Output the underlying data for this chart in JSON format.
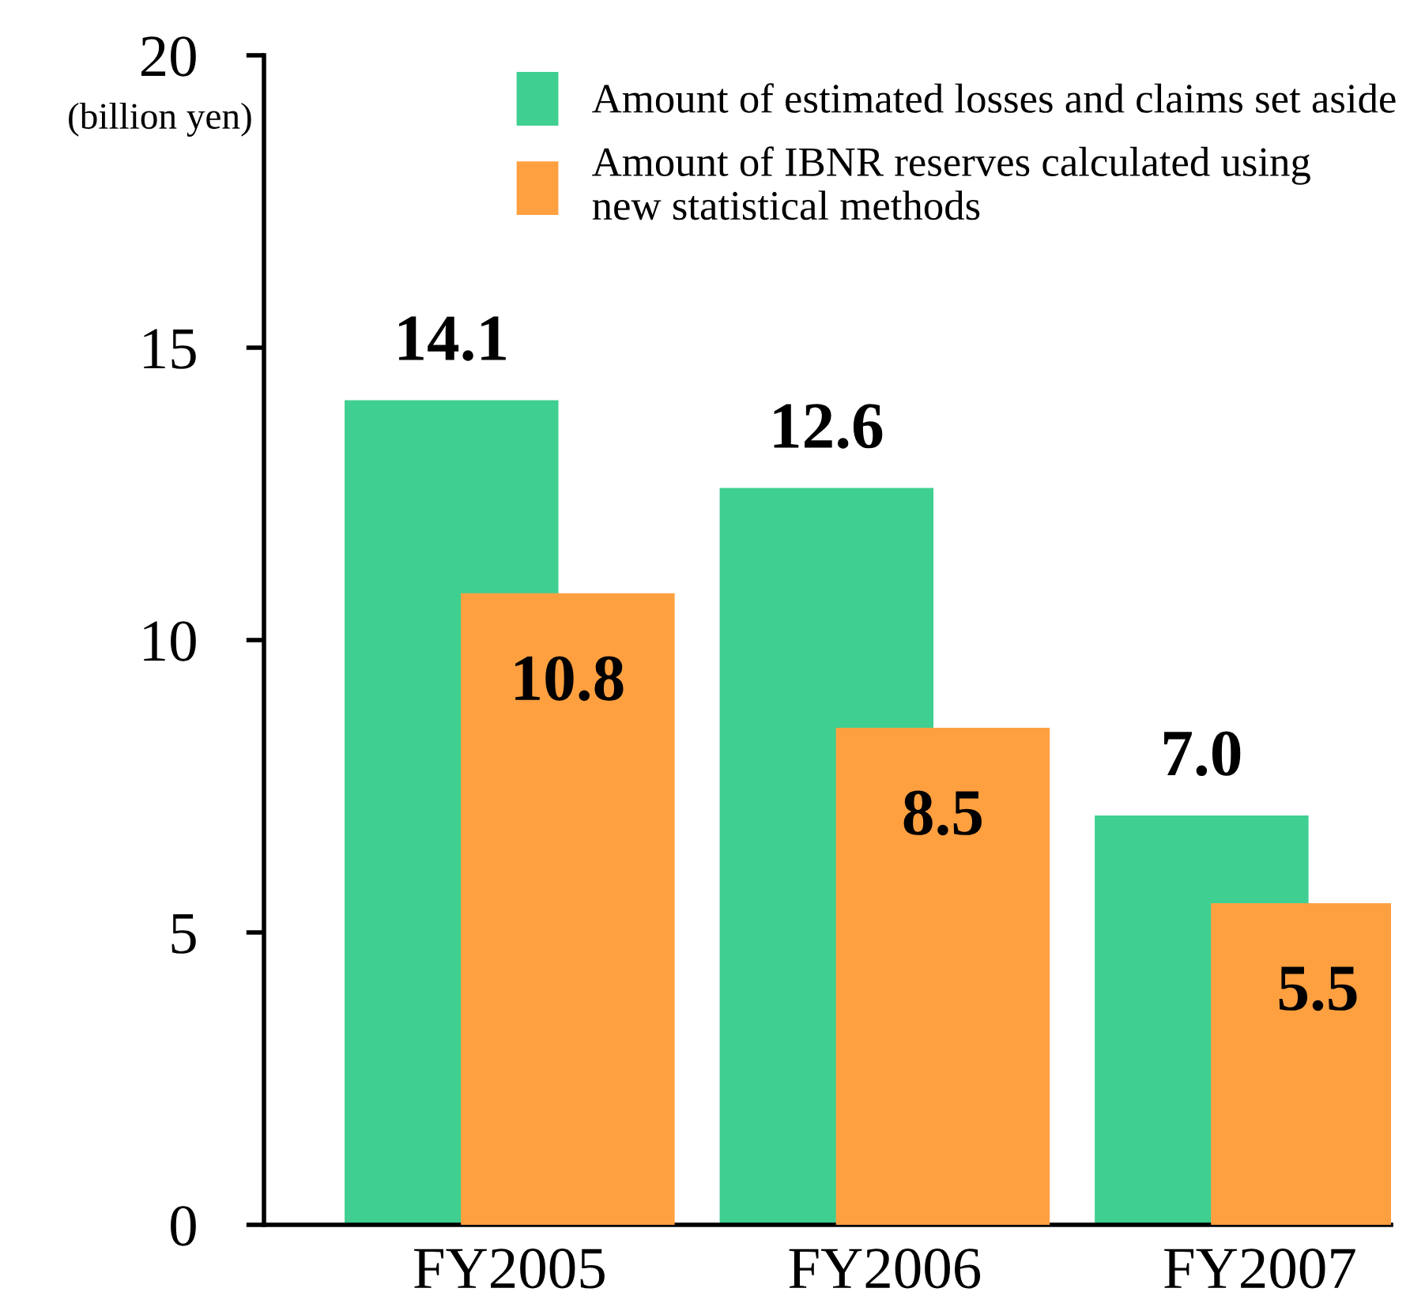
{
  "chart_data": {
    "type": "bar",
    "ylabel": "(billion yen)",
    "categories": [
      "FY2005",
      "FY2006",
      "FY2007"
    ],
    "series": [
      {
        "name": "Amount of estimated losses and claims set aside",
        "color": "#3fcf90",
        "values": [
          14.1,
          12.6,
          7.0
        ],
        "value_labels": [
          "14.1",
          "12.6",
          "7.0"
        ]
      },
      {
        "name": "Amount of IBNR reserves calculated using\nnew statistical methods",
        "color": "#ffa040",
        "values": [
          10.8,
          8.5,
          5.5
        ],
        "value_labels": [
          "10.8",
          "8.5",
          "5.5"
        ]
      }
    ],
    "ylim": [
      0,
      20
    ],
    "yticks": [
      0,
      5,
      10,
      15,
      20
    ],
    "grid": false,
    "legend": "top right"
  }
}
